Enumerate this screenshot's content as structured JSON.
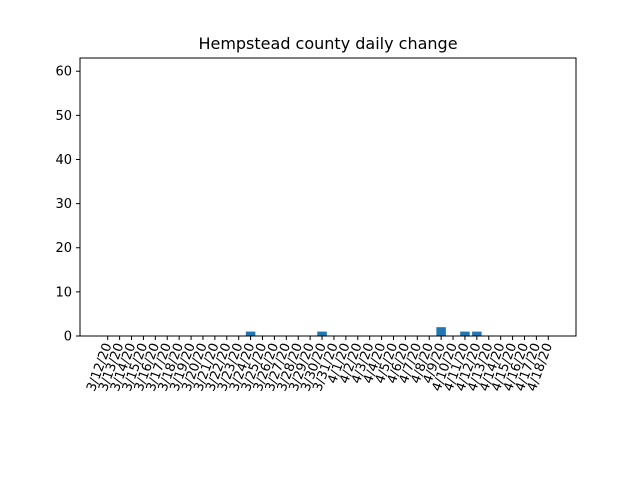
{
  "chart_data": {
    "type": "bar",
    "title": "Hempstead county daily change",
    "xlabel": "",
    "ylabel": "",
    "ylim": [
      0,
      63
    ],
    "yticks": [
      0,
      10,
      20,
      30,
      40,
      50,
      60
    ],
    "bar_color": "#1f77b4",
    "grid": false,
    "categories": [
      "3/12/20",
      "3/13/20",
      "3/14/20",
      "3/15/20",
      "3/16/20",
      "3/17/20",
      "3/18/20",
      "3/19/20",
      "3/20/20",
      "3/21/20",
      "3/22/20",
      "3/23/20",
      "3/24/20",
      "3/25/20",
      "3/26/20",
      "3/27/20",
      "3/28/20",
      "3/29/20",
      "3/30/20",
      "3/31/20",
      "4/1/20",
      "4/2/20",
      "4/3/20",
      "4/4/20",
      "4/5/20",
      "4/6/20",
      "4/7/20",
      "4/8/20",
      "4/9/20",
      "4/10/20",
      "4/11/20",
      "4/12/20",
      "4/13/20",
      "4/14/20",
      "4/15/20",
      "4/16/20",
      "4/17/20",
      "4/18/20"
    ],
    "values": [
      0,
      0,
      0,
      0,
      0,
      0,
      0,
      0,
      0,
      0,
      0,
      0,
      1,
      0,
      0,
      0,
      0,
      0,
      1,
      0,
      0,
      0,
      0,
      0,
      0,
      0,
      0,
      0,
      2,
      0,
      1,
      1,
      0,
      0,
      0,
      0,
      0,
      0
    ]
  }
}
